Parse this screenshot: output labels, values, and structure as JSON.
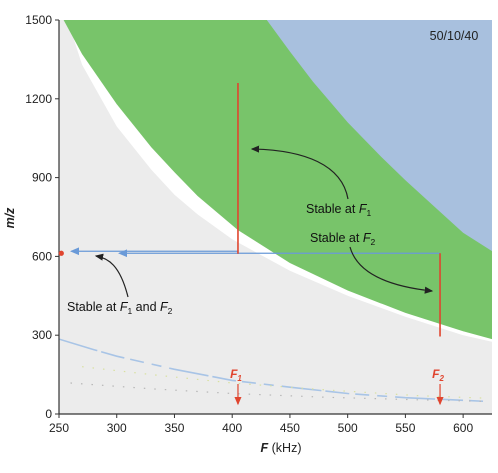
{
  "chart_data": {
    "type": "area",
    "corner_label": "50/10/40",
    "xlabel": "F",
    "xlabel_unit": "(kHz)",
    "ylabel": "m/z",
    "xlim": [
      250,
      625
    ],
    "ylim": [
      0,
      1500
    ],
    "x_ticks": [
      250,
      300,
      350,
      400,
      450,
      500,
      550,
      600
    ],
    "y_ticks": [
      0,
      300,
      600,
      900,
      1200,
      1500
    ],
    "grid": false,
    "colors": {
      "background_region": "#ececec",
      "yellow_band": "#e6ea8a",
      "green_region": "#78c46a",
      "blue_region": "#a8c0de",
      "red_marker": "#e0452f",
      "blue_arrow": "#6a9ad8",
      "dashed_curve": "#a8c4e6",
      "axis": "#333333"
    },
    "regions": {
      "white_boundary": [
        [
          250,
          1600
        ],
        [
          270,
          1330
        ],
        [
          300,
          1095
        ],
        [
          330,
          930
        ],
        [
          350,
          835
        ],
        [
          370,
          760
        ],
        [
          400,
          665
        ],
        [
          450,
          545
        ],
        [
          500,
          450
        ],
        [
          550,
          370
        ],
        [
          600,
          300
        ],
        [
          625,
          275
        ]
      ],
      "yellow_lower": [
        [
          250,
          1880
        ],
        [
          270,
          1600
        ],
        [
          300,
          1290
        ],
        [
          330,
          1095
        ],
        [
          350,
          990
        ],
        [
          370,
          900
        ],
        [
          405,
          770
        ],
        [
          450,
          630
        ],
        [
          500,
          510
        ],
        [
          550,
          420
        ],
        [
          600,
          345
        ],
        [
          625,
          315
        ]
      ],
      "green_lower": [
        [
          254,
          1500
        ],
        [
          270,
          1370
        ],
        [
          300,
          1180
        ],
        [
          330,
          1015
        ],
        [
          350,
          920
        ],
        [
          370,
          830
        ],
        [
          405,
          700
        ],
        [
          450,
          575
        ],
        [
          500,
          470
        ],
        [
          550,
          385
        ],
        [
          600,
          315
        ],
        [
          625,
          285
        ]
      ],
      "blue_lower": [
        [
          430,
          1500
        ],
        [
          450,
          1380
        ],
        [
          470,
          1265
        ],
        [
          500,
          1110
        ],
        [
          530,
          975
        ],
        [
          550,
          890
        ],
        [
          580,
          770
        ],
        [
          600,
          690
        ],
        [
          625,
          620
        ]
      ]
    },
    "dashed_curve": [
      [
        250,
        285
      ],
      [
        280,
        245
      ],
      [
        300,
        220
      ],
      [
        350,
        170
      ],
      [
        400,
        128
      ],
      [
        450,
        102
      ],
      [
        500,
        78
      ],
      [
        550,
        62
      ],
      [
        600,
        52
      ],
      [
        620,
        48
      ]
    ],
    "stability_lines": [
      {
        "f": 405,
        "mz_low": 610,
        "mz_high": 1260
      },
      {
        "f": 580,
        "mz_low": 295,
        "mz_high": 612
      }
    ],
    "projections": [
      {
        "from_f": 580,
        "mz": 612,
        "to_f": 252
      }
    ],
    "markers": [
      {
        "label": "F",
        "subscript": "1",
        "f": 405
      },
      {
        "label": "F",
        "subscript": "2",
        "f": 580
      }
    ],
    "annotations": [
      {
        "prefix": "Stable at ",
        "main": "F",
        "sub": "1",
        "suffix": ""
      },
      {
        "prefix": "Stable at ",
        "main": "F",
        "sub": "2",
        "suffix": ""
      },
      {
        "prefix": "Stable at ",
        "main": "F",
        "sub": "1",
        "mid": " and ",
        "main2": "F",
        "sub2": "2"
      }
    ]
  }
}
